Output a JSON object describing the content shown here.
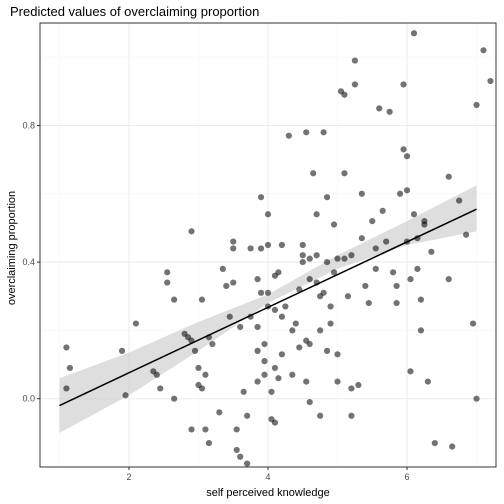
{
  "chart_data": {
    "type": "scatter",
    "title": "Predicted values of overclaiming proportion",
    "xlabel": "self perceived knowledge",
    "ylabel": "overclaiming proportion",
    "xlim": [
      0.72,
      7.28
    ],
    "ylim": [
      -0.2,
      1.1
    ],
    "xticks": [
      2,
      4,
      6
    ],
    "yticks": [
      0.0,
      0.4,
      0.8
    ],
    "ytick_labels": [
      "0.0",
      "0.4",
      "0.8"
    ],
    "grid": true,
    "colors": {
      "points": "#000000",
      "line": "#000000",
      "ribbon": "#cccccc",
      "grid_major": "#ebebeb",
      "grid_minor": "#f5f5f5",
      "border": "#333333"
    },
    "fit_line": {
      "x": [
        1.0,
        7.0
      ],
      "y": [
        -0.02,
        0.555
      ]
    },
    "confidence_band": {
      "x": [
        1.0,
        2.0,
        3.0,
        4.0,
        5.0,
        6.0,
        7.0
      ],
      "lower": [
        -0.1,
        0.01,
        0.14,
        0.28,
        0.38,
        0.45,
        0.49
      ],
      "upper": [
        0.06,
        0.135,
        0.225,
        0.305,
        0.42,
        0.52,
        0.625
      ]
    },
    "points": [
      [
        1.1,
        0.15
      ],
      [
        1.1,
        0.03
      ],
      [
        1.15,
        0.09
      ],
      [
        1.9,
        0.14
      ],
      [
        1.95,
        0.01
      ],
      [
        2.1,
        0.22
      ],
      [
        2.35,
        0.08
      ],
      [
        2.4,
        0.07
      ],
      [
        2.45,
        0.03
      ],
      [
        2.55,
        0.37
      ],
      [
        2.55,
        0.34
      ],
      [
        2.65,
        0.29
      ],
      [
        2.65,
        0.0
      ],
      [
        2.8,
        0.19
      ],
      [
        2.85,
        0.18
      ],
      [
        2.9,
        0.49
      ],
      [
        2.9,
        0.17
      ],
      [
        2.9,
        -0.09
      ],
      [
        2.95,
        0.14
      ],
      [
        3.0,
        0.09
      ],
      [
        3.0,
        0.04
      ],
      [
        3.05,
        0.29
      ],
      [
        3.05,
        0.03
      ],
      [
        3.1,
        -0.09
      ],
      [
        3.1,
        0.07
      ],
      [
        3.15,
        -0.13
      ],
      [
        3.15,
        0.18
      ],
      [
        3.2,
        0.16
      ],
      [
        3.3,
        -0.04
      ],
      [
        3.35,
        0.38
      ],
      [
        3.4,
        0.33
      ],
      [
        3.45,
        0.24
      ],
      [
        3.5,
        0.34
      ],
      [
        3.5,
        0.44
      ],
      [
        3.5,
        0.46
      ],
      [
        3.55,
        -0.09
      ],
      [
        3.55,
        -0.15
      ],
      [
        3.6,
        -0.17
      ],
      [
        3.6,
        0.21
      ],
      [
        3.65,
        0.02
      ],
      [
        3.7,
        -0.19
      ],
      [
        3.7,
        -0.05
      ],
      [
        3.75,
        0.24
      ],
      [
        3.75,
        0.44
      ],
      [
        3.85,
        0.05
      ],
      [
        3.85,
        0.21
      ],
      [
        3.85,
        0.14
      ],
      [
        3.85,
        0.35
      ],
      [
        3.9,
        0.59
      ],
      [
        3.9,
        0.44
      ],
      [
        3.9,
        0.31
      ],
      [
        3.95,
        0.07
      ],
      [
        3.95,
        0.11
      ],
      [
        3.95,
        0.16
      ],
      [
        4.0,
        0.27
      ],
      [
        4.0,
        0.54
      ],
      [
        4.0,
        0.31
      ],
      [
        4.0,
        0.45
      ],
      [
        4.05,
        0.02
      ],
      [
        4.05,
        -0.06
      ],
      [
        4.1,
        0.36
      ],
      [
        4.1,
        0.26
      ],
      [
        4.1,
        0.09
      ],
      [
        4.1,
        -0.07
      ],
      [
        4.15,
        0.37
      ],
      [
        4.15,
        0.06
      ],
      [
        4.2,
        0.24
      ],
      [
        4.2,
        0.45
      ],
      [
        4.2,
        0.13
      ],
      [
        4.25,
        0.27
      ],
      [
        4.3,
        0.77
      ],
      [
        4.35,
        0.2
      ],
      [
        4.35,
        0.07
      ],
      [
        4.4,
        0.22
      ],
      [
        4.45,
        0.32
      ],
      [
        4.45,
        0.15
      ],
      [
        4.5,
        0.4
      ],
      [
        4.5,
        0.45
      ],
      [
        4.5,
        0.42
      ],
      [
        4.55,
        0.05
      ],
      [
        4.55,
        0.17
      ],
      [
        4.55,
        0.78
      ],
      [
        4.6,
        0.41
      ],
      [
        4.6,
        0.35
      ],
      [
        4.6,
        0.16
      ],
      [
        4.6,
        -0.01
      ],
      [
        4.65,
        0.66
      ],
      [
        4.7,
        0.54
      ],
      [
        4.7,
        0.42
      ],
      [
        4.7,
        0.34
      ],
      [
        4.75,
        0.2
      ],
      [
        4.75,
        -0.05
      ],
      [
        4.75,
        0.3
      ],
      [
        4.8,
        0.31
      ],
      [
        4.8,
        0.78
      ],
      [
        4.85,
        0.59
      ],
      [
        4.85,
        0.4
      ],
      [
        4.85,
        0.14
      ],
      [
        4.9,
        0.27
      ],
      [
        4.9,
        0.22
      ],
      [
        4.95,
        0.37
      ],
      [
        4.95,
        0.51
      ],
      [
        5.0,
        0.05
      ],
      [
        5.0,
        0.13
      ],
      [
        5.0,
        0.41
      ],
      [
        5.05,
        0.9
      ],
      [
        5.1,
        0.89
      ],
      [
        5.1,
        0.66
      ],
      [
        5.1,
        0.41
      ],
      [
        5.15,
        0.3
      ],
      [
        5.2,
        0.42
      ],
      [
        5.2,
        0.03
      ],
      [
        5.2,
        -0.05
      ],
      [
        5.25,
        0.99
      ],
      [
        5.25,
        0.92
      ],
      [
        5.3,
        0.04
      ],
      [
        5.35,
        0.6
      ],
      [
        5.35,
        0.47
      ],
      [
        5.4,
        0.33
      ],
      [
        5.45,
        0.28
      ],
      [
        5.5,
        0.52
      ],
      [
        5.55,
        0.44
      ],
      [
        5.55,
        0.38
      ],
      [
        5.6,
        0.85
      ],
      [
        5.65,
        0.55
      ],
      [
        5.7,
        0.46
      ],
      [
        5.75,
        0.84
      ],
      [
        5.8,
        0.37
      ],
      [
        5.85,
        0.33
      ],
      [
        5.85,
        0.28
      ],
      [
        5.9,
        0.6
      ],
      [
        5.95,
        0.92
      ],
      [
        5.95,
        0.73
      ],
      [
        6.0,
        0.71
      ],
      [
        6.0,
        0.61
      ],
      [
        6.0,
        0.46
      ],
      [
        6.05,
        0.35
      ],
      [
        6.05,
        0.08
      ],
      [
        6.1,
        1.07
      ],
      [
        6.1,
        0.54
      ],
      [
        6.15,
        0.47
      ],
      [
        6.15,
        0.38
      ],
      [
        6.2,
        0.29
      ],
      [
        6.2,
        0.2
      ],
      [
        6.25,
        0.52
      ],
      [
        6.25,
        0.51
      ],
      [
        6.3,
        0.05
      ],
      [
        6.35,
        0.43
      ],
      [
        6.4,
        -0.13
      ],
      [
        6.6,
        0.65
      ],
      [
        6.6,
        0.35
      ],
      [
        6.65,
        -0.14
      ],
      [
        6.75,
        0.58
      ],
      [
        6.85,
        0.48
      ],
      [
        6.95,
        0.22
      ],
      [
        7.0,
        0.86
      ],
      [
        7.0,
        -0.0
      ],
      [
        7.1,
        1.02
      ],
      [
        7.2,
        0.93
      ]
    ]
  }
}
